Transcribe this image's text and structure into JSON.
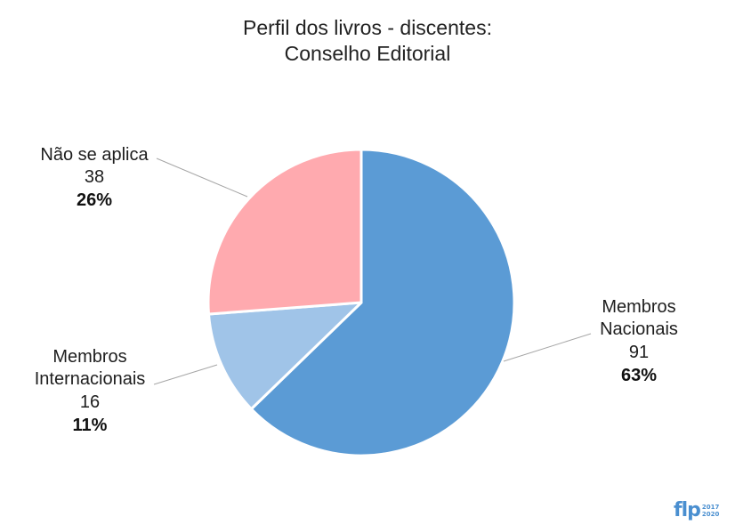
{
  "chart_data": {
    "type": "pie",
    "title": "Perfil dos livros - discentes:",
    "subtitle": "Conselho Editorial",
    "slices": [
      {
        "label_lines": [
          "Membros",
          "Nacionais"
        ],
        "value": "91",
        "value_num": 91,
        "percent": "63%",
        "color": "#5b9bd5"
      },
      {
        "label_lines": [
          "Membros",
          "Internacionais"
        ],
        "value": "16",
        "value_num": 16,
        "percent": "11%",
        "color": "#a0c4e8"
      },
      {
        "label_lines": [
          "Não se aplica"
        ],
        "value": "38",
        "value_num": 38,
        "percent": "26%",
        "color": "#ffaaaf"
      }
    ]
  },
  "logo": {
    "text": "flp",
    "year_top": "2017",
    "year_bottom": "2020"
  }
}
